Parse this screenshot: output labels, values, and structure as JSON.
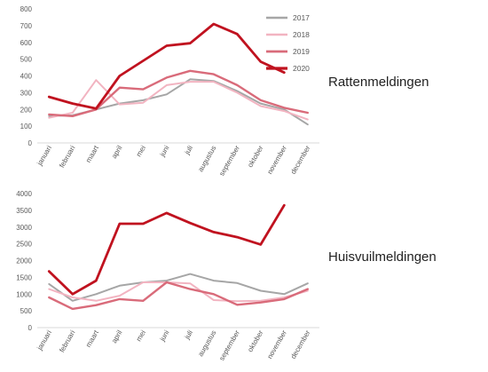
{
  "chart_data": [
    {
      "type": "line",
      "title": "Rattenmeldingen",
      "categories": [
        "januari",
        "februari",
        "maart",
        "april",
        "mei",
        "juni",
        "juli",
        "augustus",
        "september",
        "oktober",
        "november",
        "december"
      ],
      "ylim": [
        0,
        800
      ],
      "yticks": [
        0,
        100,
        200,
        300,
        400,
        500,
        600,
        700,
        800
      ],
      "grid": false,
      "legend": "top-right",
      "series": [
        {
          "name": "2017",
          "color": "#a6a6a6",
          "values": [
            160,
            165,
            200,
            235,
            255,
            290,
            380,
            370,
            310,
            235,
            200,
            110
          ]
        },
        {
          "name": "2018",
          "color": "#f2b4c1",
          "values": [
            150,
            180,
            375,
            230,
            240,
            345,
            365,
            365,
            300,
            220,
            190,
            140
          ]
        },
        {
          "name": "2019",
          "color": "#d96b7a",
          "values": [
            170,
            160,
            200,
            330,
            320,
            390,
            430,
            410,
            345,
            255,
            210,
            180
          ]
        },
        {
          "name": "2020",
          "color": "#c0121f",
          "values": [
            275,
            235,
            205,
            400,
            490,
            580,
            595,
            710,
            650,
            485,
            420,
            null
          ]
        }
      ]
    },
    {
      "type": "line",
      "title": "Huisvuilmeldingen",
      "categories": [
        "januari",
        "februari",
        "maart",
        "april",
        "mei",
        "juni",
        "juli",
        "augustus",
        "september",
        "oktober",
        "november",
        "december"
      ],
      "ylim": [
        0,
        4000
      ],
      "yticks": [
        0,
        500,
        1000,
        1500,
        2000,
        2500,
        3000,
        3500,
        4000
      ],
      "grid": false,
      "series": [
        {
          "name": "2017",
          "color": "#a6a6a6",
          "values": [
            1300,
            800,
            1000,
            1250,
            1350,
            1400,
            1600,
            1400,
            1330,
            1100,
            1000,
            1320
          ]
        },
        {
          "name": "2018",
          "color": "#f2b4c1",
          "values": [
            1150,
            900,
            800,
            950,
            1350,
            1350,
            1320,
            820,
            790,
            800,
            900,
            1100
          ]
        },
        {
          "name": "2019",
          "color": "#d96b7a",
          "values": [
            900,
            560,
            670,
            850,
            800,
            1350,
            1150,
            1000,
            680,
            750,
            850,
            1150
          ]
        },
        {
          "name": "2020",
          "color": "#c0121f",
          "values": [
            1680,
            1000,
            1400,
            3100,
            3100,
            3420,
            3120,
            2850,
            2700,
            2480,
            3650,
            null
          ]
        }
      ]
    }
  ]
}
